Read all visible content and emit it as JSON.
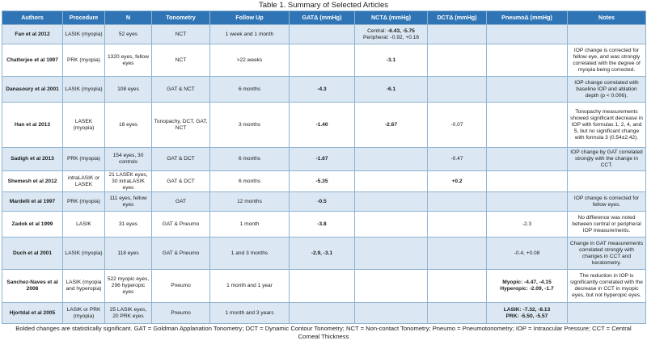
{
  "title": "Table 1. Summary of Selected Articles",
  "headers": [
    "Authors",
    "Procedure",
    "N",
    "Tonometry",
    "Follow Up",
    "GATΔ (mmHg)",
    "NCTΔ (mmHg)",
    "DCTΔ (mmHg)",
    "PneumoΔ (mmHg)",
    "Notes"
  ],
  "rows": [
    {
      "author": "Fan et al 2012",
      "procedure": "LASIK (myopia)",
      "n": "52 eyes",
      "tonometry": "NCT",
      "follow_up": "1 week and 1 month",
      "gat": "",
      "nct_lines": [
        {
          "label": "Central: ",
          "value": "-6.43, -5.75",
          "bold": true
        },
        {
          "label": "Peripheral: ",
          "value": "-0.92, +0.16",
          "bold": false
        }
      ],
      "dct": "",
      "pneumo": "",
      "notes": ""
    },
    {
      "author": "Chatterjee et al 1997",
      "procedure": "PRK (myopia)",
      "n": "1320 eyes, fellow eyes",
      "tonometry": "NCT",
      "follow_up": ">22 weeks",
      "gat": "",
      "nct": "-3.1",
      "dct": "",
      "pneumo": "",
      "notes": "IOP change is corrected for fellow eye, and was strongly correlated with the degree of myopia being corrected."
    },
    {
      "author": "Danasoury et al 2001",
      "procedure": "LASIK (myopia)",
      "n": "108 eyes",
      "tonometry": "GAT & NCT",
      "follow_up": "6 months",
      "gat": "-4.3",
      "nct": "-6.1",
      "dct": "",
      "pneumo": "",
      "notes": "IOP change correlated with baseline IOP and ablation depth (p < 0.006)."
    },
    {
      "author": "Han et al 2013",
      "procedure": "LASEK (myopia)",
      "n": "18 eyes",
      "tonometry": "Tonopachy, DCT, GAT, NCT",
      "follow_up": "3 months",
      "gat": "-1.40",
      "nct": "-2.67",
      "dct": "-0.07",
      "dct_bold": false,
      "pneumo": "",
      "notes": "Tonopachy measurements showed significant decrease in IOP with formulas 1, 2, 4, and 5, but no significant change with formula 3 (0.54±2.42)."
    },
    {
      "author": "Sadigh et al 2013",
      "procedure": "PRK (myopia)",
      "n": "154 eyes, 30 controls",
      "tonometry": "GAT & DCT",
      "follow_up": "6 months",
      "gat": "-1.67",
      "nct": "",
      "dct": "-0.47",
      "dct_bold": false,
      "pneumo": "",
      "notes": "IOP change by GAT correlated strongly with the change in CCT."
    },
    {
      "author": "Shemesh et al 2012",
      "procedure": "intraLASIK or LASEK",
      "n": "21 LASEK eyes, 30 intraLASIK eyes",
      "tonometry": "GAT & DCT",
      "follow_up": "6 months",
      "gat": "-5.35",
      "nct": "",
      "dct": "+0.2",
      "dct_bold": true,
      "pneumo": "",
      "notes": ""
    },
    {
      "author": "Mardelli et al 1997",
      "procedure": "PRK (myopia)",
      "n": "111 eyes, fellow eyes",
      "tonometry": "GAT",
      "follow_up": "12 months",
      "gat": "-0.5",
      "nct": "",
      "dct": "",
      "pneumo": "",
      "notes": "IOP change is corrected for fellow eyes."
    },
    {
      "author": "Zadok et al 1999",
      "procedure": "LASIK",
      "n": "31 eyes",
      "tonometry": "GAT & Pneumo",
      "follow_up": "1 month",
      "gat": "-3.8",
      "nct": "",
      "dct": "",
      "pneumo": "-2.3",
      "pneumo_bold": false,
      "notes": "No difference was noted between central or peripheral IOP measurements."
    },
    {
      "author": "Duch et al 2001",
      "procedure": "LASIK (myopia)",
      "n": "118 eyes",
      "tonometry": "GAT & Pneumo",
      "follow_up": "1 and 3 months",
      "gat": "-2.9, -3.1",
      "nct": "",
      "dct": "",
      "pneumo": "-0.4, +0.08",
      "pneumo_bold": false,
      "notes": "Change in GAT measurements correlated strongly with changes in CCT and keratometry."
    },
    {
      "author": "Sanchez-Naves et al 2008",
      "procedure": "LASIK (myopia and hyperopia)",
      "n": "522 myopic eyes, 296 hyperopic eyes",
      "tonometry": "Pneumo",
      "follow_up": "1 month and 1 year",
      "gat": "",
      "nct": "",
      "dct": "",
      "pneumo_lines": [
        "Myopic: -4.47, -4.15",
        "Hyperopic: -2.09, -1.7"
      ],
      "notes": "The reduction in IOP is significantly correlated with the decrease in CCT in myopic eyes, but not hyperopic eyes."
    },
    {
      "author": "Hjortdal et al 2005",
      "procedure": "LASIK or PRK (myopia)",
      "n": "25 LASIK eyes, 20 PRK eyes",
      "tonometry": "Pneumo",
      "follow_up": "1 month and 3 years",
      "gat": "",
      "nct": "",
      "dct": "",
      "pneumo_lines": [
        "LASIK: -7.32, -8.13",
        "PRK: -5.50, -5.57"
      ],
      "notes": ""
    }
  ],
  "footnote": "Bolded changes are statistically significant. GAT = Goldman Applanation Tonometry; DCT = Dynamic Contour Tonometry; NCT = Non-contact Tonometry; Pneumo = Pneumotonometry; IOP = Intraocular Pressure; CCT = Central Corneal Thickness"
}
